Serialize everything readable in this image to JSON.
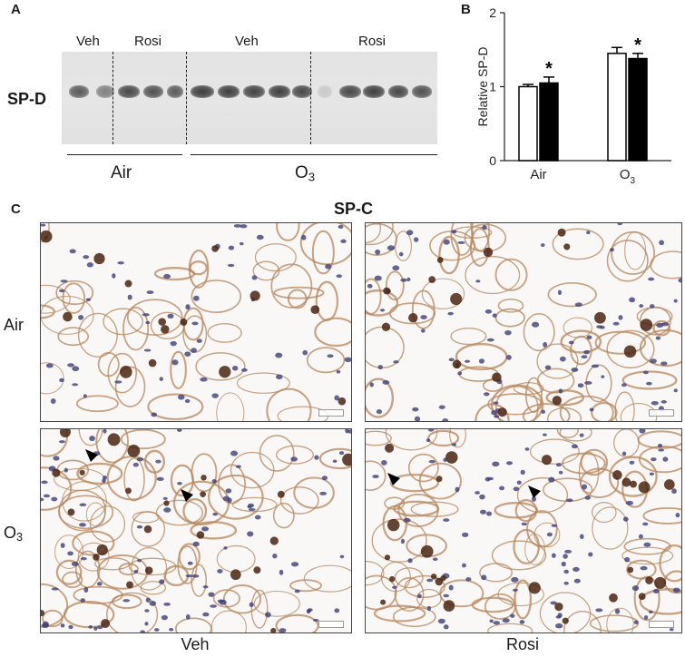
{
  "panels": {
    "a_letter": "A",
    "b_letter": "B",
    "c_letter": "C"
  },
  "blot": {
    "protein_label": "SP-D",
    "lane_groups": [
      "Veh",
      "Rosi",
      "Veh",
      "Rosi"
    ],
    "exposure_groups": [
      "Air",
      "O"
    ],
    "ozone_subscript": "3"
  },
  "chart_data": {
    "type": "bar",
    "categories": [
      "Air",
      "O3"
    ],
    "category_display": [
      "Air",
      "O"
    ],
    "category_subscripts": [
      "",
      "3"
    ],
    "ylabel": "Relative SP-D",
    "ylim": [
      0,
      2
    ],
    "yticks": [
      "0",
      "1",
      "2"
    ],
    "series": [
      {
        "fill": "#ffffff",
        "values": [
          1.0,
          1.45
        ],
        "errors": [
          0.03,
          0.08
        ]
      },
      {
        "fill": "#000000",
        "values": [
          1.05,
          1.38
        ],
        "errors": [
          0.08,
          0.07
        ]
      }
    ],
    "significance_marks": [
      "",
      "*",
      "",
      "*"
    ]
  },
  "micrographs": {
    "title": "SP-C",
    "row_labels": [
      "Air",
      "O"
    ],
    "row_subscripts": [
      "",
      "3"
    ],
    "col_labels": [
      "Veh",
      "Rosi"
    ]
  },
  "colors": {
    "tissue": "#b5855c",
    "nuclei": "#3f3f7a",
    "stain": "#4a2410"
  }
}
